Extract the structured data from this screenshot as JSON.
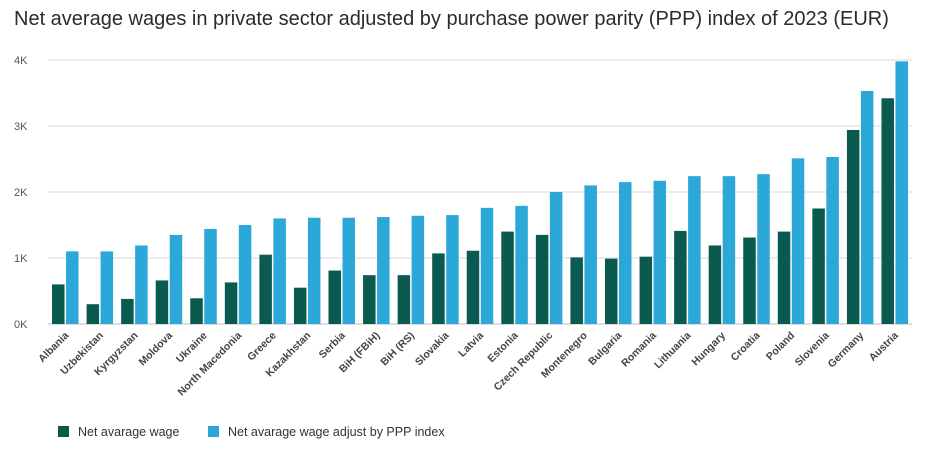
{
  "chart_data": {
    "type": "bar",
    "title": "Net average wages in private sector adjusted by purchase power parity (PPP) index of 2023 (EUR)",
    "xlabel": "",
    "ylabel": "",
    "ylim": [
      0,
      4000
    ],
    "yticks": [
      0,
      1000,
      2000,
      3000,
      4000
    ],
    "ytick_labels": [
      "0K",
      "1K",
      "2K",
      "3K",
      "4K"
    ],
    "grid": true,
    "legend_position": "bottom-left",
    "categories": [
      "Albania",
      "Uzbekistan",
      "Kyrgyzstan",
      "Moldova",
      "Ukraine",
      "North Macedonia",
      "Greece",
      "Kazakhstan",
      "Serbia",
      "BiH (FBiH)",
      "BiH (RS)",
      "Slovakia",
      "Latvia",
      "Estonia",
      "Czech Republic",
      "Montenegro",
      "Bulgaria",
      "Romania",
      "Lithuania",
      "Hungary",
      "Croatia",
      "Poland",
      "Slovenia",
      "Germany",
      "Austria"
    ],
    "series": [
      {
        "name": "Net avarage wage",
        "color": "#0b5a50",
        "values": [
          600,
          300,
          380,
          660,
          390,
          630,
          1050,
          550,
          810,
          740,
          740,
          1070,
          1110,
          1400,
          1350,
          1010,
          990,
          1020,
          1410,
          1190,
          1310,
          1400,
          1750,
          2940,
          3420
        ]
      },
      {
        "name": "Net avarage wage adjust by PPP index",
        "color": "#2ba7d8",
        "values": [
          1100,
          1100,
          1190,
          1350,
          1440,
          1500,
          1600,
          1610,
          1610,
          1620,
          1640,
          1650,
          1760,
          1790,
          2000,
          2100,
          2150,
          2170,
          2240,
          2240,
          2270,
          2510,
          2530,
          3530,
          3980
        ]
      }
    ]
  }
}
